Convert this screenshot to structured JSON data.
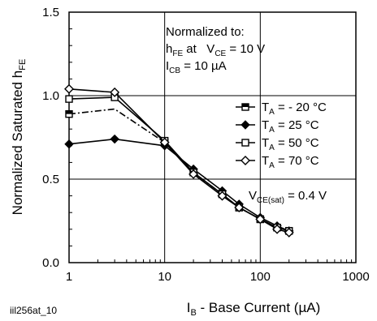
{
  "chart_data": {
    "type": "line",
    "ylabel_main": "Normalized Saturated h",
    "ylabel_sub": "FE",
    "xlabel_main": "I",
    "xlabel_sub": "B",
    "xlabel_rest": " - Base Current (µA)",
    "x_scale": "log",
    "xlim": [
      1,
      1000
    ],
    "ylim": [
      0,
      1.5
    ],
    "x_ticks": [
      1,
      10,
      100,
      1000
    ],
    "x_tick_labels": [
      "1",
      "10",
      "100",
      "1000"
    ],
    "y_ticks": [
      0,
      0.5,
      1.0,
      1.5
    ],
    "y_tick_labels": [
      "0.0",
      "0.5",
      "1.0",
      "1.5"
    ],
    "grid": true,
    "footnote": "iil256at_10",
    "annotation": {
      "line1": "Normalized to:",
      "line2_main": "h",
      "line2_sub": "FE",
      "line2_mid": " at   V",
      "line2_sub2": "CE",
      "line2_rest": " = 10 V",
      "line3_main": "I",
      "line3_sub": "CB",
      "line3_rest": " = 10 µA"
    },
    "vce_label": {
      "main": "V",
      "sub": "CE(sat)",
      "rest": " = 0.4 V"
    },
    "legend_position": "right",
    "series": [
      {
        "name_prefix": "T",
        "name_sub": "A",
        "name_rest": " = - 20 °C",
        "marker": "square-half",
        "dash": "8,3,2,3",
        "x": [
          1,
          3,
          10,
          20,
          40,
          60,
          100,
          150,
          200
        ],
        "y": [
          0.89,
          0.92,
          0.72,
          0.54,
          0.41,
          0.33,
          0.26,
          0.21,
          0.19
        ]
      },
      {
        "name_prefix": "T",
        "name_sub": "A",
        "name_rest": " = 25 °C",
        "marker": "diamond-filled",
        "dash": "",
        "x": [
          1,
          3,
          10,
          20,
          40,
          60,
          100,
          150,
          200
        ],
        "y": [
          0.71,
          0.74,
          0.7,
          0.56,
          0.43,
          0.35,
          0.27,
          0.22,
          0.19
        ]
      },
      {
        "name_prefix": "T",
        "name_sub": "A",
        "name_rest": " = 50 °C",
        "marker": "square-open",
        "dash": "",
        "x": [
          1,
          3,
          10,
          20,
          40,
          60,
          100,
          150,
          200
        ],
        "y": [
          0.98,
          0.99,
          0.73,
          0.54,
          0.41,
          0.33,
          0.26,
          0.21,
          0.19
        ]
      },
      {
        "name_prefix": "T",
        "name_sub": "A",
        "name_rest": " = 70 °C",
        "marker": "diamond-open",
        "dash": "",
        "x": [
          1,
          3,
          10,
          20,
          40,
          60,
          100,
          150,
          200
        ],
        "y": [
          1.04,
          1.02,
          0.72,
          0.53,
          0.4,
          0.33,
          0.26,
          0.2,
          0.18
        ]
      }
    ]
  }
}
